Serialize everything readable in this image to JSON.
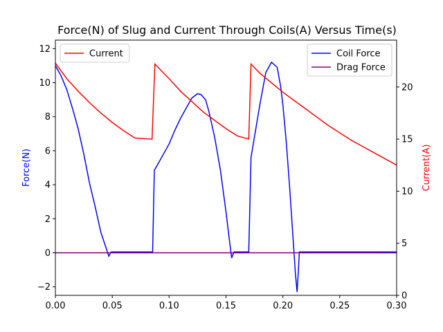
{
  "chart_data": {
    "type": "line",
    "title": "Force(N) of Slug and Current Through Coils(A) Versus Time(s)",
    "xlabel": "",
    "ylabel_left": "Force(N)",
    "ylabel_right": "Current(A)",
    "xlim": [
      0.0,
      0.3
    ],
    "ylim_left": [
      -2.5,
      12.5
    ],
    "ylim_right": [
      0,
      24.5
    ],
    "x_ticks": [
      "0.00",
      "0.05",
      "0.10",
      "0.15",
      "0.20",
      "0.25",
      "0.30"
    ],
    "y_left_ticks": [
      "−2",
      "0",
      "2",
      "4",
      "6",
      "8",
      "10",
      "12"
    ],
    "y_right_ticks": [
      "0",
      "5",
      "10",
      "15",
      "20"
    ],
    "grid": false,
    "colors": {
      "left_label": "#0000ff",
      "right_label": "#ff0000"
    },
    "legends": [
      {
        "placement": "top-left",
        "entries": [
          "Current"
        ]
      },
      {
        "placement": "top-right",
        "entries": [
          "Coil Force",
          "Drag Force"
        ]
      }
    ],
    "series": [
      {
        "name": "Coil Force",
        "axis": "left",
        "color": "#0000ff",
        "points": [
          [
            0.0,
            11.0
          ],
          [
            0.005,
            10.4
          ],
          [
            0.01,
            9.6
          ],
          [
            0.015,
            8.5
          ],
          [
            0.02,
            7.3
          ],
          [
            0.025,
            5.8
          ],
          [
            0.03,
            4.1
          ],
          [
            0.035,
            2.7
          ],
          [
            0.04,
            1.2
          ],
          [
            0.045,
            0.2
          ],
          [
            0.047,
            -0.2
          ],
          [
            0.049,
            0.05
          ],
          [
            0.0855,
            0.05
          ],
          [
            0.087,
            4.85
          ],
          [
            0.09,
            5.2
          ],
          [
            0.095,
            5.8
          ],
          [
            0.1,
            6.4
          ],
          [
            0.105,
            7.2
          ],
          [
            0.11,
            7.9
          ],
          [
            0.115,
            8.5
          ],
          [
            0.12,
            9.1
          ],
          [
            0.125,
            9.35
          ],
          [
            0.128,
            9.3
          ],
          [
            0.132,
            9.0
          ],
          [
            0.135,
            8.3
          ],
          [
            0.14,
            6.8
          ],
          [
            0.145,
            4.9
          ],
          [
            0.15,
            2.4
          ],
          [
            0.154,
            0.2
          ],
          [
            0.155,
            -0.3
          ],
          [
            0.157,
            0.05
          ],
          [
            0.17,
            0.05
          ],
          [
            0.172,
            5.6
          ],
          [
            0.175,
            6.8
          ],
          [
            0.18,
            8.8
          ],
          [
            0.185,
            10.6
          ],
          [
            0.19,
            11.2
          ],
          [
            0.195,
            10.9
          ],
          [
            0.198,
            9.8
          ],
          [
            0.2,
            8.7
          ],
          [
            0.203,
            6.5
          ],
          [
            0.206,
            3.8
          ],
          [
            0.209,
            0.8
          ],
          [
            0.211,
            -1.2
          ],
          [
            0.2125,
            -2.3
          ],
          [
            0.2135,
            -1.2
          ],
          [
            0.2145,
            0.05
          ],
          [
            0.3,
            0.05
          ]
        ]
      },
      {
        "name": "Drag Force",
        "axis": "left",
        "color": "#800080",
        "points": [
          [
            0.0,
            0.0
          ],
          [
            0.3,
            0.0
          ]
        ]
      },
      {
        "name": "Current",
        "axis": "right",
        "color": "#ff0000",
        "points": [
          [
            0.0,
            22.3
          ],
          [
            0.01,
            20.8
          ],
          [
            0.02,
            19.6
          ],
          [
            0.03,
            18.5
          ],
          [
            0.04,
            17.5
          ],
          [
            0.05,
            16.6
          ],
          [
            0.06,
            15.8
          ],
          [
            0.07,
            15.1
          ],
          [
            0.085,
            15.0
          ],
          [
            0.0875,
            22.2
          ],
          [
            0.1,
            20.8
          ],
          [
            0.11,
            19.6
          ],
          [
            0.12,
            18.6
          ],
          [
            0.13,
            17.6
          ],
          [
            0.14,
            16.8
          ],
          [
            0.15,
            16.0
          ],
          [
            0.16,
            15.3
          ],
          [
            0.17,
            15.0
          ],
          [
            0.172,
            22.2
          ],
          [
            0.18,
            21.3
          ],
          [
            0.19,
            20.4
          ],
          [
            0.2,
            19.5
          ],
          [
            0.21,
            18.7
          ],
          [
            0.22,
            17.9
          ],
          [
            0.23,
            17.1
          ],
          [
            0.24,
            16.3
          ],
          [
            0.25,
            15.6
          ],
          [
            0.26,
            14.9
          ],
          [
            0.27,
            14.3
          ],
          [
            0.28,
            13.7
          ],
          [
            0.29,
            13.1
          ],
          [
            0.3,
            12.5
          ]
        ]
      }
    ]
  }
}
